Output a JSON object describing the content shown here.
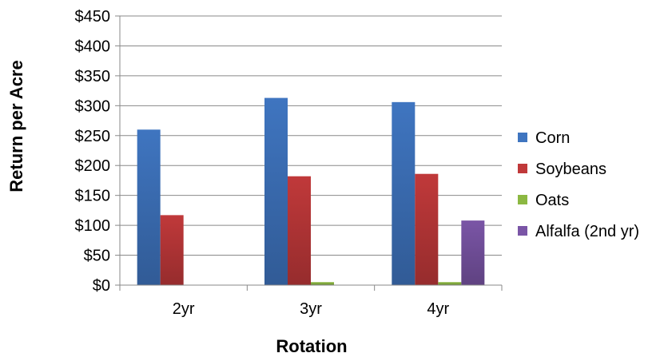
{
  "chart_data": {
    "type": "bar",
    "title": "",
    "xlabel": "Rotation",
    "ylabel": "Return per Acre",
    "categories": [
      "2yr",
      "3yr",
      "4yr"
    ],
    "ylim": [
      0,
      450
    ],
    "ytick_step": 50,
    "ytick_labels": [
      "$0",
      "$50",
      "$100",
      "$150",
      "$200",
      "$250",
      "$300",
      "$350",
      "$400",
      "$450"
    ],
    "grid": true,
    "legend_position": "right",
    "series": [
      {
        "name": "Corn",
        "color": "#3f75c0",
        "values": [
          260,
          313,
          306
        ]
      },
      {
        "name": "Soybeans",
        "color": "#c0393a",
        "values": [
          117,
          182,
          186
        ]
      },
      {
        "name": "Oats",
        "color": "#8cb842",
        "values": [
          0,
          5,
          5
        ]
      },
      {
        "name": "Alfalfa (2nd yr)",
        "color": "#7a55a6",
        "values": [
          0,
          0,
          108
        ]
      }
    ]
  }
}
